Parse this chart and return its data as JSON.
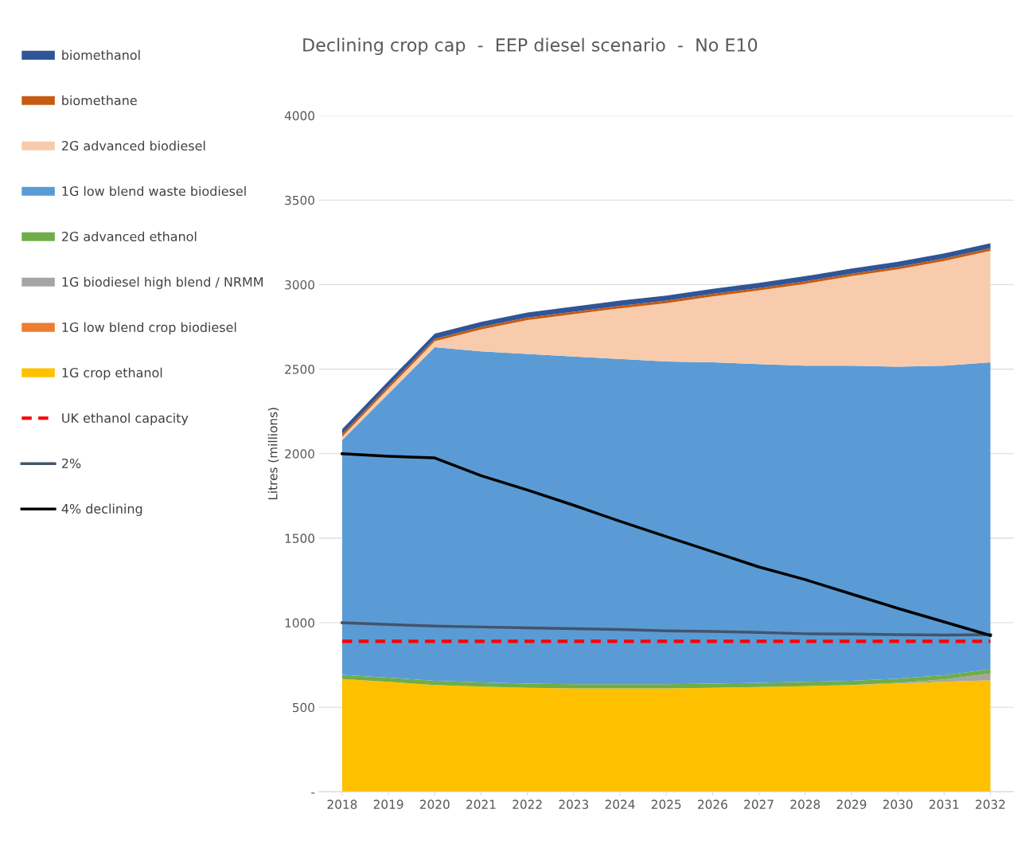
{
  "chart_data": {
    "type": "area",
    "stacked": true,
    "title": "Declining crop cap  -  EEP diesel scenario  -  No E10",
    "ylabel": "Litres (millions)",
    "categories": [
      "2018",
      "2019",
      "2020",
      "2021",
      "2022",
      "2023",
      "2024",
      "2025",
      "2026",
      "2027",
      "2028",
      "2029",
      "2030",
      "2031",
      "2032"
    ],
    "ylim": [
      0,
      4000
    ],
    "yticks": [
      {
        "value": 0,
        "label": "-"
      },
      500,
      1000,
      1500,
      2000,
      2500,
      3000,
      3500,
      4000
    ],
    "grid": "y",
    "legend": "left",
    "series": [
      {
        "name": "1G crop ethanol",
        "color": "#ffc000",
        "values": [
          667,
          650,
          632,
          622,
          615,
          612,
          612,
          612,
          615,
          620,
          625,
          632,
          640,
          650,
          660
        ]
      },
      {
        "name": "1G low blend crop biodiesel",
        "color": "#ed7d31",
        "values": [
          null,
          null,
          null,
          null,
          null,
          null,
          null,
          null,
          null,
          null,
          null,
          null,
          null,
          null,
          null
        ]
      },
      {
        "name": "1G biodiesel high blend / NRMM",
        "color": "#a5a5a5",
        "values": [
          0,
          0,
          0,
          0,
          0,
          0,
          0,
          0,
          0,
          0,
          0,
          0,
          5,
          15,
          40
        ]
      },
      {
        "name": "2G advanced ethanol",
        "color": "#70ad47",
        "values": [
          25,
          25,
          25,
          25,
          25,
          25,
          25,
          25,
          25,
          25,
          25,
          25,
          25,
          25,
          25
        ]
      },
      {
        "name": "1G low blend waste biodiesel",
        "color": "#5b9bd5",
        "values": [
          1388,
          1680,
          1973,
          1958,
          1950,
          1938,
          1923,
          1908,
          1900,
          1885,
          1870,
          1863,
          1845,
          1830,
          1815
        ]
      },
      {
        "name": "2G advanced biodiesel",
        "color": "#f8cbad",
        "values": [
          20,
          30,
          35,
          130,
          200,
          250,
          300,
          345,
          390,
          435,
          485,
          530,
          575,
          620,
          660
        ]
      },
      {
        "name": "biomethane",
        "color": "#c55a11",
        "values": [
          15,
          15,
          15,
          15,
          15,
          15,
          15,
          15,
          15,
          15,
          15,
          15,
          15,
          15,
          15
        ]
      },
      {
        "name": "biomethanol",
        "color": "#2f5597",
        "values": [
          30,
          30,
          30,
          30,
          30,
          30,
          30,
          30,
          30,
          30,
          30,
          30,
          30,
          30,
          30
        ]
      },
      {
        "name": "UK ethanol capacity",
        "type": "line",
        "line_style": "dashed",
        "color": "#ff0000",
        "values": [
          890,
          890,
          890,
          890,
          890,
          890,
          890,
          890,
          890,
          890,
          890,
          890,
          890,
          890,
          890
        ]
      },
      {
        "name": "2%",
        "type": "line",
        "line_style": "solid",
        "color": "#44546a",
        "values": [
          1000,
          990,
          980,
          975,
          970,
          965,
          960,
          952,
          948,
          943,
          935,
          933,
          930,
          927,
          930
        ]
      },
      {
        "name": "4% declining",
        "type": "line",
        "line_style": "solid",
        "color": "#000000",
        "values": [
          2000,
          1985,
          1975,
          1870,
          1785,
          1695,
          1600,
          1510,
          1420,
          1330,
          1255,
          1170,
          1085,
          1005,
          925
        ]
      }
    ]
  }
}
